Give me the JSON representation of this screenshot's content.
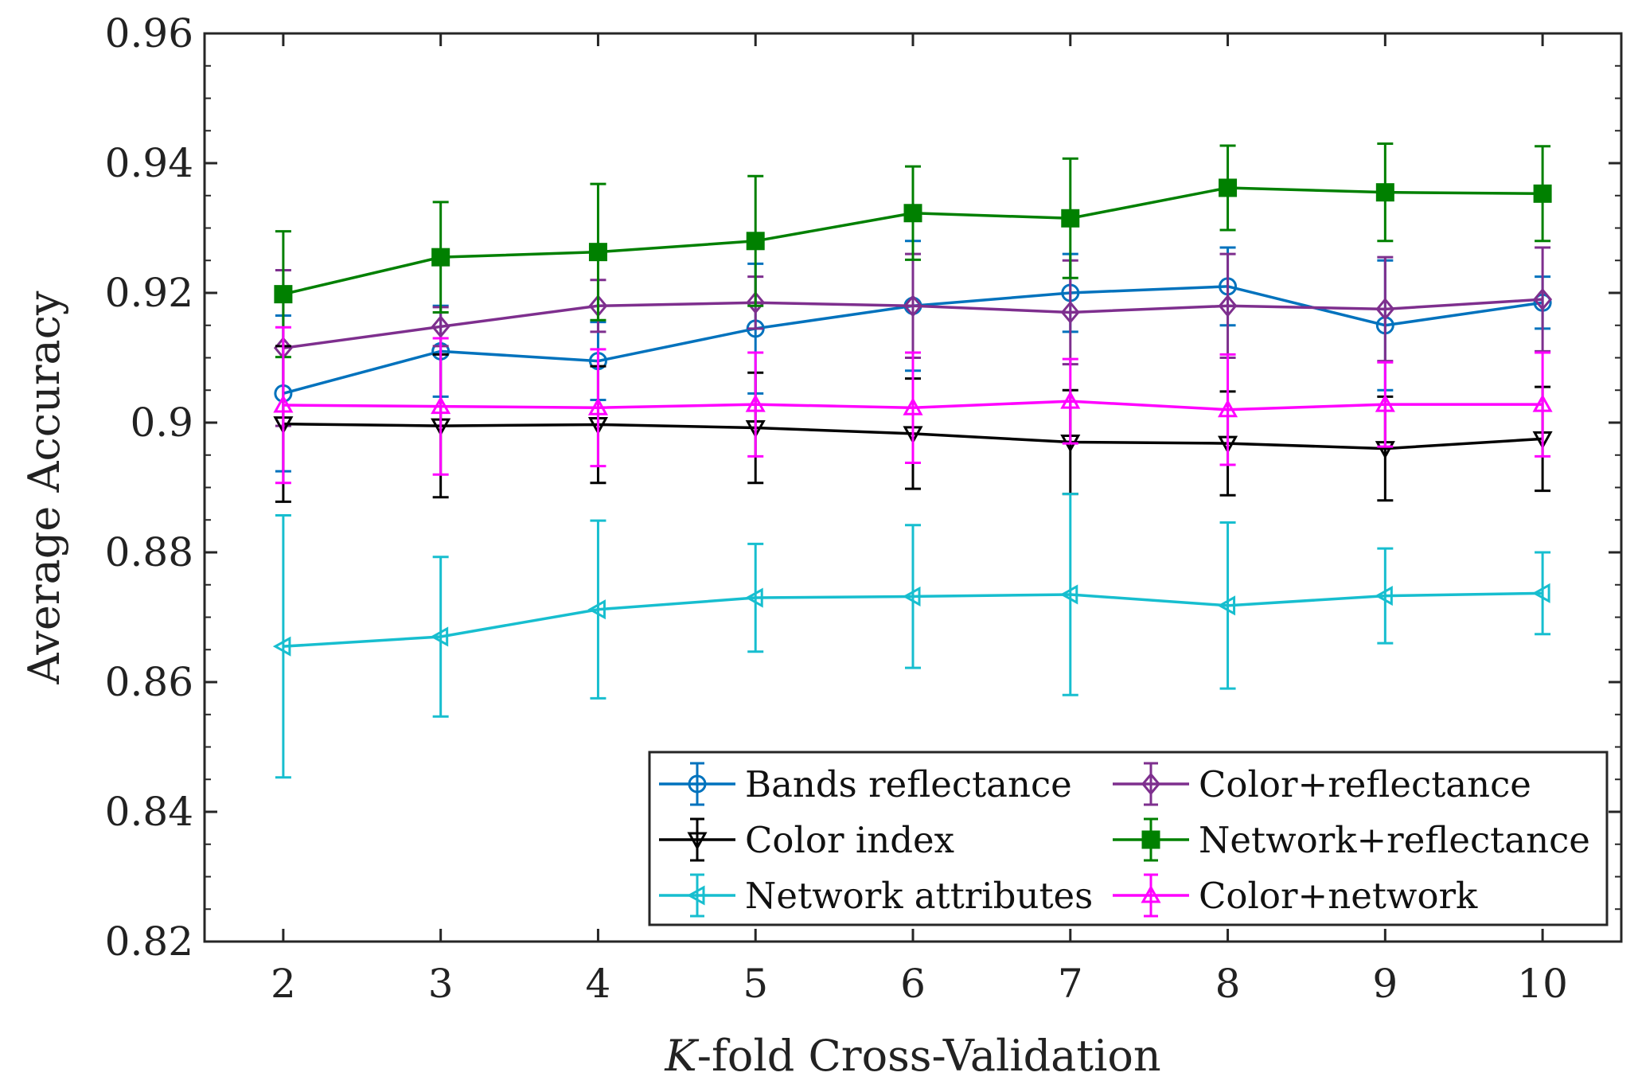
{
  "chart_data": {
    "type": "line",
    "title": "",
    "xlabel_italic": "K",
    "xlabel_rest": "-fold Cross-Validation",
    "ylabel": "Average Accuracy",
    "x": [
      2,
      3,
      4,
      5,
      6,
      7,
      8,
      9,
      10
    ],
    "xlim": [
      1.5,
      10.5
    ],
    "ylim": [
      0.82,
      0.96
    ],
    "xticks": [
      "2",
      "3",
      "4",
      "5",
      "6",
      "7",
      "8",
      "9",
      "10"
    ],
    "yticks": [
      "0.82",
      "0.84",
      "0.86",
      "0.88",
      "0.9",
      "0.92",
      "0.94",
      "0.96"
    ],
    "grid": false,
    "legend_position": "bottom-right",
    "series": [
      {
        "name": "Bands reflectance",
        "color": "#0072BD",
        "marker": "circle",
        "values": [
          0.9045,
          0.911,
          0.9095,
          0.9145,
          0.918,
          0.92,
          0.921,
          0.915,
          0.9185
        ],
        "errors": [
          0.012,
          0.007,
          0.006,
          0.01,
          0.01,
          0.006,
          0.006,
          0.01,
          0.004
        ]
      },
      {
        "name": "Color+reflectance",
        "color": "#7E2F8E",
        "marker": "diamond",
        "values": [
          0.9115,
          0.9148,
          0.918,
          0.9185,
          0.918,
          0.917,
          0.918,
          0.9175,
          0.919
        ],
        "errors": [
          0.012,
          0.003,
          0.004,
          0.004,
          0.008,
          0.008,
          0.008,
          0.008,
          0.008
        ]
      },
      {
        "name": "Color index",
        "color": "#000000",
        "marker": "triangle-down",
        "values": [
          0.8998,
          0.8995,
          0.8997,
          0.8992,
          0.8983,
          0.897,
          0.8968,
          0.896,
          0.8975
        ],
        "errors": [
          0.012,
          0.011,
          0.009,
          0.0085,
          0.0085,
          0.008,
          0.008,
          0.008,
          0.008
        ]
      },
      {
        "name": "Network+reflectance",
        "color": "#008000",
        "marker": "square",
        "values": [
          0.9198,
          0.9255,
          0.9263,
          0.928,
          0.9323,
          0.9315,
          0.9362,
          0.9355,
          0.9353
        ],
        "errors": [
          0.0097,
          0.0085,
          0.0105,
          0.01,
          0.0072,
          0.0092,
          0.0065,
          0.0075,
          0.0073
        ]
      },
      {
        "name": "Network attributes",
        "color": "#17BECF",
        "marker": "triangle-left",
        "values": [
          0.8655,
          0.867,
          0.8712,
          0.873,
          0.8732,
          0.8735,
          0.8718,
          0.8733,
          0.8737
        ],
        "errors": [
          0.0202,
          0.0123,
          0.0137,
          0.0083,
          0.011,
          0.0155,
          0.0128,
          0.0073,
          0.0063
        ]
      },
      {
        "name": "Color+network",
        "color": "#FF00FF",
        "marker": "triangle-up",
        "values": [
          0.9027,
          0.9025,
          0.9023,
          0.9028,
          0.9023,
          0.9033,
          0.902,
          0.9028,
          0.9028
        ],
        "errors": [
          0.012,
          0.0105,
          0.009,
          0.008,
          0.0085,
          0.0065,
          0.0085,
          0.0065,
          0.008
        ]
      }
    ]
  }
}
